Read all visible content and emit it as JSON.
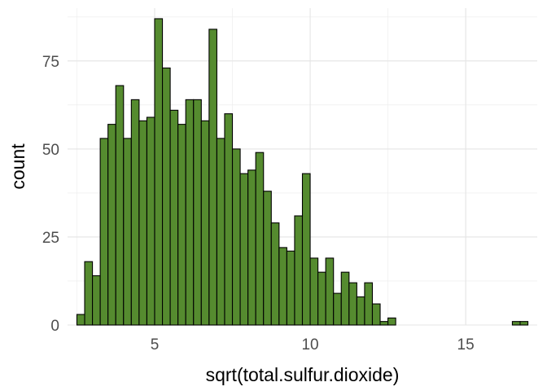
{
  "chart_data": {
    "type": "bar",
    "subtype": "histogram",
    "xlabel": "sqrt(total.sulfur.dioxide)",
    "ylabel": "count",
    "xlim": [
      2.2,
      17.3
    ],
    "ylim": [
      0,
      90
    ],
    "x_ticks": [
      5,
      10,
      15
    ],
    "y_ticks": [
      0,
      25,
      50,
      75
    ],
    "grid": true,
    "legend": "none",
    "bin_width": 0.25,
    "bins_start": 2.5,
    "fill_color": "#558b2f",
    "edge_color": "#000000",
    "values": [
      3,
      18,
      14,
      53,
      57,
      68,
      53,
      64,
      58,
      59,
      87,
      73,
      61,
      57,
      64,
      64,
      58,
      84,
      53,
      60,
      50,
      43,
      44,
      49,
      38,
      29,
      22,
      21,
      31,
      43,
      19,
      15,
      19,
      9,
      15,
      12,
      8,
      12,
      6,
      1,
      2,
      0,
      0,
      0,
      0,
      0,
      0,
      0,
      0,
      0,
      0,
      0,
      0,
      0,
      0,
      0,
      1,
      1
    ]
  }
}
